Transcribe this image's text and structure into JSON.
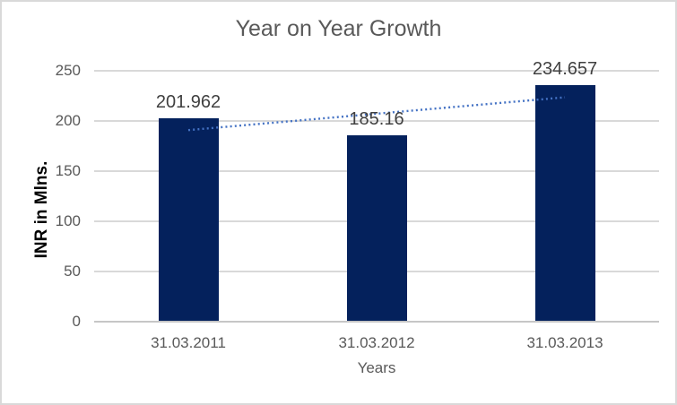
{
  "chart_data": {
    "type": "bar",
    "title": "Year on Year Growth",
    "categories": [
      "31.03.2011",
      "31.03.2012",
      "31.03.2013"
    ],
    "values": [
      201.962,
      185.16,
      234.657
    ],
    "data_labels": [
      "201.962",
      "185.16",
      "234.657"
    ],
    "xlabel": "Years",
    "ylabel": "INR in Mlns.",
    "ylim": [
      0,
      250
    ],
    "yticks": [
      0,
      50,
      100,
      150,
      200,
      250
    ],
    "grid": true,
    "legend": "none",
    "trendline": {
      "type": "linear",
      "style": "dotted"
    },
    "colors": {
      "bar": "#04215C",
      "trendline": "#4472C4",
      "gridline": "#D9D9D9",
      "axis_line": "#C6C6C6",
      "title_text": "#595959",
      "tick_text": "#595959",
      "data_label_text": "#404040",
      "ylabel_text": "#000000",
      "chart_border": "#D9D9D9",
      "background": "#FFFFFF"
    }
  }
}
